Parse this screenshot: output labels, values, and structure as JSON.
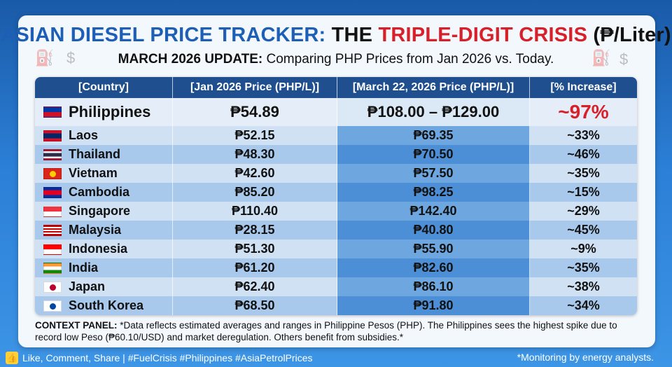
{
  "header": {
    "title_part1": "ASIAN DIESEL PRICE TRACKER:",
    "title_part2": "THE",
    "title_part3": "TRIPLE-DIGIT CRISIS",
    "title_part4": "(₱/Liter)",
    "subtitle_bold": "MARCH 2026 UPDATE:",
    "subtitle_rest": "Comparing PHP Prices from Jan 2026 vs. Today."
  },
  "table": {
    "columns": [
      "[Country]",
      "[Jan 2026 Price (PHP/L)]",
      "[March 22, 2026 Price (PHP/L)]",
      "[% Increase]"
    ],
    "rows": [
      {
        "country": "Philippines",
        "jan": "₱54.89",
        "mar": "₱108.00 – ₱129.00",
        "increase": "~97%",
        "flag": "ph"
      },
      {
        "country": "Laos",
        "jan": "₱52.15",
        "mar": "₱69.35",
        "increase": "~33%",
        "flag": "la"
      },
      {
        "country": "Thailand",
        "jan": "₱48.30",
        "mar": "₱70.50",
        "increase": "~46%",
        "flag": "th"
      },
      {
        "country": "Vietnam",
        "jan": "₱42.60",
        "mar": "₱57.50",
        "increase": "~35%",
        "flag": "vn"
      },
      {
        "country": "Cambodia",
        "jan": "₱85.20",
        "mar": "₱98.25",
        "increase": "~15%",
        "flag": "kh"
      },
      {
        "country": "Singapore",
        "jan": "₱110.40",
        "mar": "₱142.40",
        "increase": "~29%",
        "flag": "sg"
      },
      {
        "country": "Malaysia",
        "jan": "₱28.15",
        "mar": "₱40.80",
        "increase": "~45%",
        "flag": "my"
      },
      {
        "country": "Indonesia",
        "jan": "₱51.30",
        "mar": "₱55.90",
        "increase": "~9%",
        "flag": "id"
      },
      {
        "country": "India",
        "jan": "₱61.20",
        "mar": "₱82.60",
        "increase": "~35%",
        "flag": "in"
      },
      {
        "country": "Japan",
        "jan": "₱62.40",
        "mar": "₱86.10",
        "increase": "~38%",
        "flag": "jp"
      },
      {
        "country": "South Korea",
        "jan": "₱68.50",
        "mar": "₱91.80",
        "increase": "~34%",
        "flag": "kr"
      }
    ]
  },
  "context": {
    "label": "CONTEXT PANEL:",
    "text": "*Data reflects estimated averages and ranges in Philippine Pesos (PHP). The Philippines sees the highest spike due to record low Peso (₱60.10/USD) and market deregulation. Others benefit from subsidies.*"
  },
  "footer": {
    "left": "Like, Comment, Share | #FuelCrisis #Philippines #AsiaPetrolPrices",
    "right": "*Monitoring by energy analysts."
  },
  "colors": {
    "brand_blue": "#1d5fb6",
    "alert_red": "#d8202a",
    "header_navy": "#1f4f8f"
  }
}
